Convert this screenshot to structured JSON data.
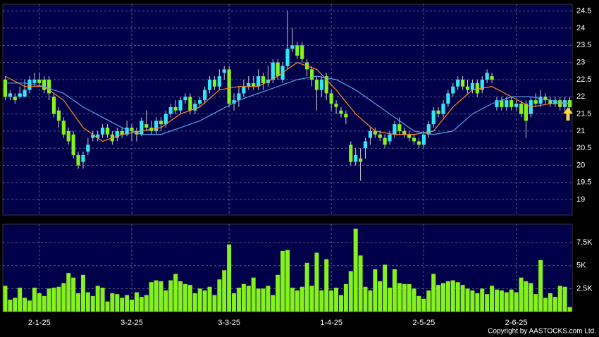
{
  "chart_data": {
    "type": "candlestick",
    "categories": [
      null,
      null,
      null,
      null,
      null,
      null,
      null,
      "2-1-25",
      null,
      null,
      null,
      null,
      null,
      null,
      null,
      null,
      null,
      null,
      null,
      null,
      null,
      null,
      null,
      null,
      null,
      null,
      "3-2-25",
      null,
      null,
      null,
      null,
      null,
      null,
      null,
      null,
      null,
      null,
      null,
      null,
      null,
      null,
      null,
      null,
      null,
      null,
      null,
      "3-3-25",
      null,
      null,
      null,
      null,
      null,
      null,
      null,
      null,
      null,
      null,
      null,
      null,
      null,
      null,
      null,
      null,
      null,
      null,
      null,
      null,
      "1-4-25",
      null,
      null,
      null,
      null,
      null,
      null,
      null,
      null,
      null,
      null,
      null,
      null,
      null,
      null,
      null,
      null,
      null,
      null,
      "2-5-25",
      null,
      null,
      null,
      null,
      null,
      null,
      null,
      null,
      null,
      null,
      null,
      null,
      null,
      null,
      null,
      null,
      null,
      null,
      "2-6-25",
      null,
      null,
      null,
      null,
      null,
      null,
      null,
      null,
      null,
      null,
      null
    ],
    "open": [
      22.5,
      22.0,
      22.0,
      22.0,
      22.0,
      22.2,
      22.4,
      22.5,
      22.5,
      22.5,
      22.0,
      21.6,
      21.3,
      21.0,
      20.9,
      20.3,
      20.1,
      20.4,
      20.8,
      20.8,
      20.9,
      21.1,
      20.9,
      20.8,
      21.0,
      20.9,
      21.1,
      21.0,
      20.9,
      21.2,
      21.1,
      21.0,
      21.3,
      21.2,
      21.5,
      21.7,
      21.6,
      21.9,
      22.0,
      21.6,
      21.8,
      21.9,
      22.2,
      22.5,
      22.3,
      22.7,
      22.8,
      21.8,
      21.9,
      22.1,
      22.3,
      22.4,
      22.3,
      22.6,
      22.4,
      22.5,
      23.0,
      22.5,
      22.9,
      23.4,
      23.5,
      23.5,
      23.0,
      22.8,
      22.5,
      22.2,
      22.6,
      22.1,
      21.8,
      21.6,
      21.5,
      20.6,
      20.1,
      20.2,
      20.5,
      20.8,
      21.0,
      20.9,
      20.8,
      20.7,
      20.9,
      21.2,
      21.0,
      20.9,
      20.8,
      20.7,
      20.6,
      20.9,
      21.2,
      21.6,
      21.5,
      21.8,
      22.1,
      22.3,
      22.5,
      22.3,
      22.2,
      22.4,
      22.2,
      22.5,
      22.6,
      21.7,
      21.9,
      21.7,
      21.9,
      21.7,
      21.8,
      21.8,
      21.5,
      21.9,
      21.8,
      22.0,
      21.9,
      21.8,
      21.9,
      21.7,
      21.9
    ],
    "high": [
      22.6,
      22.2,
      22.1,
      22.3,
      22.5,
      22.6,
      22.7,
      22.7,
      22.6,
      22.6,
      22.1,
      21.7,
      21.4,
      21.1,
      21.0,
      20.4,
      20.4,
      20.8,
      21.0,
      21.0,
      21.2,
      21.2,
      21.0,
      21.1,
      21.1,
      21.3,
      21.2,
      21.1,
      21.4,
      21.6,
      21.3,
      21.4,
      21.4,
      21.6,
      21.8,
      21.9,
      22.0,
      22.1,
      22.1,
      21.9,
      22.0,
      22.3,
      22.6,
      22.6,
      22.8,
      22.9,
      22.9,
      22.1,
      22.3,
      22.5,
      22.6,
      22.6,
      22.8,
      22.7,
      22.9,
      23.1,
      23.1,
      23.0,
      24.5,
      24.0,
      23.6,
      23.6,
      23.1,
      22.9,
      22.6,
      22.6,
      22.7,
      22.2,
      21.9,
      21.7,
      21.6,
      20.7,
      20.5,
      20.5,
      20.8,
      21.1,
      21.1,
      21.0,
      20.9,
      21.0,
      21.3,
      21.4,
      21.1,
      21.0,
      20.9,
      20.8,
      21.0,
      21.3,
      21.7,
      21.7,
      21.9,
      22.2,
      22.4,
      22.6,
      22.6,
      22.5,
      22.5,
      22.5,
      22.6,
      22.8,
      22.7,
      22.0,
      22.0,
      22.0,
      22.0,
      21.9,
      21.9,
      21.9,
      22.0,
      22.1,
      22.2,
      22.1,
      22.0,
      22.0,
      22.0,
      22.0,
      22.0
    ],
    "low": [
      21.9,
      21.9,
      21.8,
      21.95,
      22.0,
      22.1,
      22.3,
      22.3,
      22.1,
      21.9,
      21.4,
      21.1,
      20.8,
      20.6,
      20.2,
      19.9,
      19.9,
      20.3,
      20.7,
      20.7,
      20.8,
      20.8,
      20.6,
      20.7,
      20.8,
      20.85,
      20.7,
      20.7,
      20.85,
      21.0,
      20.9,
      20.9,
      21.0,
      21.1,
      21.4,
      21.5,
      21.5,
      21.8,
      21.5,
      21.5,
      21.7,
      21.8,
      22.1,
      22.2,
      22.2,
      22.5,
      21.7,
      21.6,
      21.7,
      22.0,
      22.2,
      22.2,
      22.2,
      22.2,
      22.3,
      22.4,
      22.5,
      22.4,
      22.8,
      23.3,
      23.1,
      23.0,
      22.6,
      22.3,
      21.6,
      22.0,
      21.9,
      21.6,
      21.5,
      21.4,
      21.2,
      20.0,
      20.0,
      19.55,
      20.2,
      20.6,
      20.8,
      20.7,
      20.5,
      20.6,
      20.8,
      20.9,
      20.8,
      20.7,
      20.6,
      20.5,
      20.5,
      20.8,
      21.1,
      21.4,
      21.4,
      21.7,
      22.0,
      22.2,
      22.2,
      22.1,
      22.1,
      22.0,
      22.1,
      22.4,
      22.4,
      21.6,
      21.6,
      21.6,
      21.6,
      21.6,
      21.4,
      20.8,
      21.4,
      21.7,
      21.7,
      21.8,
      21.7,
      21.7,
      21.6,
      21.6,
      21.6
    ],
    "close": [
      22.0,
      22.1,
      21.9,
      22.1,
      22.2,
      22.5,
      22.5,
      22.4,
      22.2,
      22.1,
      21.5,
      21.3,
      20.9,
      20.7,
      20.3,
      20.0,
      20.3,
      20.6,
      20.9,
      20.9,
      21.1,
      20.9,
      20.7,
      21.0,
      20.9,
      21.1,
      21.0,
      20.9,
      21.3,
      21.1,
      21.0,
      21.3,
      21.2,
      21.5,
      21.7,
      21.6,
      21.9,
      22.0,
      21.6,
      21.8,
      21.9,
      22.2,
      22.5,
      22.3,
      22.6,
      22.8,
      21.8,
      21.9,
      22.1,
      22.3,
      22.4,
      22.3,
      22.6,
      22.4,
      22.5,
      23.0,
      22.6,
      22.9,
      23.4,
      23.5,
      23.2,
      23.1,
      22.8,
      22.5,
      22.2,
      22.5,
      22.1,
      21.8,
      21.7,
      21.5,
      21.4,
      20.1,
      20.3,
      20.1,
      20.7,
      21.0,
      20.9,
      20.8,
      20.6,
      20.9,
      21.2,
      21.0,
      20.9,
      20.8,
      20.7,
      20.6,
      20.9,
      21.2,
      21.6,
      21.5,
      21.8,
      22.1,
      22.3,
      22.5,
      22.3,
      22.2,
      22.4,
      22.1,
      22.5,
      22.7,
      22.5,
      21.9,
      21.7,
      21.9,
      21.7,
      21.8,
      21.5,
      21.3,
      21.9,
      21.8,
      22.0,
      21.9,
      21.8,
      21.9,
      21.7,
      21.9,
      21.7
    ],
    "up_color": "#33e6f5",
    "down_color": "#86f21c",
    "series": [
      {
        "color": "#ff8c1a",
        "x": [
          0,
          4,
          8,
          12,
          16,
          20,
          24,
          28,
          32,
          36,
          40,
          44,
          48,
          52,
          56,
          60,
          64,
          68,
          72,
          76,
          80,
          84,
          88,
          92,
          96,
          100,
          104,
          108,
          112,
          116
        ],
        "values": [
          22.6,
          22.3,
          22.3,
          21.9,
          21.1,
          20.7,
          20.9,
          21.0,
          21.1,
          21.5,
          21.7,
          22.2,
          22.3,
          22.3,
          22.6,
          23.0,
          22.8,
          22.2,
          21.5,
          21.0,
          20.9,
          20.9,
          21.0,
          21.7,
          22.2,
          22.3,
          22.0,
          21.7,
          21.8,
          21.8
        ]
      },
      {
        "color": "#5aa0e6",
        "x": [
          0,
          4,
          8,
          12,
          16,
          20,
          24,
          28,
          32,
          36,
          40,
          44,
          48,
          52,
          56,
          60,
          64,
          68,
          72,
          76,
          80,
          84,
          88,
          92,
          96,
          100,
          104,
          108,
          112,
          116
        ],
        "values": [
          22.4,
          22.4,
          22.3,
          22.1,
          21.7,
          21.4,
          21.1,
          20.9,
          20.9,
          21.1,
          21.3,
          21.6,
          21.9,
          22.1,
          22.3,
          22.5,
          22.6,
          22.5,
          22.2,
          21.8,
          21.4,
          21.0,
          20.9,
          21.0,
          21.5,
          21.8,
          22.0,
          22.0,
          21.9,
          21.8
        ]
      }
    ],
    "ylim": [
      18.55,
      24.7
    ],
    "yticks": [
      19,
      19.5,
      20,
      20.5,
      21,
      21.5,
      22,
      22.5,
      23,
      23.5,
      24,
      24.5
    ],
    "grid": true,
    "volume": {
      "color": "#86f21c",
      "ylim": [
        0,
        9500
      ],
      "yticks": [
        {
          "value": 2500,
          "label": "2.5K"
        },
        {
          "value": 5000,
          "label": "5K"
        },
        {
          "value": 7500,
          "label": "7.5K"
        }
      ],
      "values": [
        2800,
        1300,
        1500,
        2600,
        1500,
        1200,
        2600,
        2000,
        1700,
        2500,
        2600,
        2700,
        3100,
        4200,
        3700,
        2000,
        4000,
        2100,
        1700,
        2800,
        2600,
        1100,
        2000,
        1900,
        1500,
        1800,
        1300,
        2100,
        1600,
        1800,
        3200,
        3400,
        3300,
        2300,
        3400,
        4100,
        3300,
        3000,
        2900,
        2000,
        2500,
        2300,
        2700,
        1800,
        3500,
        4500,
        7300,
        2000,
        2600,
        3000,
        2800,
        3700,
        2500,
        2500,
        2800,
        1800,
        4000,
        6600,
        6700,
        2600,
        2300,
        2700,
        5300,
        2800,
        6400,
        2300,
        5700,
        2300,
        2600,
        1800,
        3000,
        4400,
        9000,
        6100,
        2700,
        2300,
        4600,
        3300,
        5100,
        2600,
        4600,
        3100,
        3000,
        3000,
        2500,
        1700,
        1400,
        2300,
        4100,
        2900,
        3100,
        3300,
        3400,
        3200,
        2900,
        2500,
        2300,
        2000,
        2500,
        1900,
        2800,
        2400,
        2300,
        2100,
        2400,
        2100,
        3700,
        3300,
        3100,
        1900,
        5600,
        1500,
        2000,
        1600,
        2800,
        2700,
        500
      ]
    },
    "copyright": "Copyright by AASTOCKS.com Ltd."
  }
}
